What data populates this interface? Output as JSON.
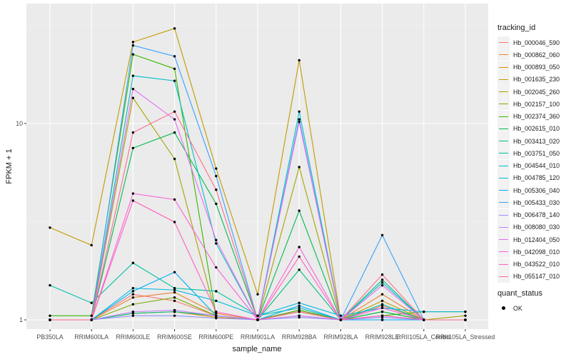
{
  "chart_data": {
    "type": "line",
    "xlabel": "sample_name",
    "ylabel": "FPKM + 1",
    "y_scale": "log10",
    "y_ticks": [
      1,
      10
    ],
    "y_tick_labels": [
      "1",
      "10"
    ],
    "grid": true,
    "legend_placement": "right",
    "categories": [
      "PB350LA",
      "RRIM600LA",
      "RRIM600LE",
      "RRIM600SE",
      "RRIM600PE",
      "RRIM901LA",
      "RRIM928BA",
      "RRIM928LA",
      "RRIM928LE",
      "RRII105LA_Control",
      "RRII105LA_Stressed"
    ],
    "series": [
      {
        "name": "Hb_000046_590",
        "color": "#F8766D",
        "values": [
          1.0,
          1.0,
          1.35,
          1.25,
          1.05,
          1.0,
          1.12,
          1.0,
          1.18,
          1.0,
          1.0
        ]
      },
      {
        "name": "Hb_000862_060",
        "color": "#EA8331",
        "values": [
          1.0,
          1.0,
          1.3,
          1.38,
          1.08,
          1.0,
          1.1,
          1.0,
          1.35,
          1.0,
          1.0
        ]
      },
      {
        "name": "Hb_000893_050",
        "color": "#D89000",
        "values": [
          1.0,
          1.0,
          1.08,
          1.1,
          1.03,
          1.0,
          1.05,
          1.0,
          1.05,
          1.0,
          1.0
        ]
      },
      {
        "name": "Hb_001635_230",
        "color": "#C09B00",
        "values": [
          2.95,
          2.4,
          26.0,
          30.5,
          5.9,
          1.35,
          21.0,
          1.0,
          1.25,
          1.0,
          1.0
        ]
      },
      {
        "name": "Hb_002045_260",
        "color": "#A3A500",
        "values": [
          1.0,
          1.0,
          13.5,
          6.6,
          1.05,
          1.0,
          6.0,
          1.0,
          1.0,
          1.0,
          1.05
        ]
      },
      {
        "name": "Hb_002157_100",
        "color": "#7CAE00",
        "values": [
          1.0,
          1.0,
          1.2,
          1.3,
          1.05,
          1.0,
          1.1,
          1.0,
          1.1,
          1.0,
          1.0
        ]
      },
      {
        "name": "Hb_002374_360",
        "color": "#39B600",
        "values": [
          1.05,
          1.05,
          22.5,
          19.0,
          1.05,
          1.0,
          1.12,
          1.0,
          1.05,
          1.1,
          1.1
        ]
      },
      {
        "name": "Hb_002615_010",
        "color": "#00BB4E",
        "values": [
          1.0,
          1.0,
          7.5,
          9.0,
          3.9,
          1.0,
          3.6,
          1.0,
          1.1,
          1.0,
          1.0
        ]
      },
      {
        "name": "Hb_003413_020",
        "color": "#00BF7D",
        "values": [
          1.0,
          1.0,
          1.08,
          1.1,
          1.05,
          1.0,
          1.8,
          1.0,
          1.6,
          1.0,
          1.0
        ]
      },
      {
        "name": "Hb_003751_050",
        "color": "#00C1A3",
        "values": [
          1.5,
          1.22,
          1.95,
          1.45,
          1.4,
          1.05,
          1.15,
          1.0,
          1.2,
          1.0,
          1.0
        ]
      },
      {
        "name": "Hb_004544_010",
        "color": "#00BFC4",
        "values": [
          1.0,
          1.0,
          17.5,
          16.5,
          2.45,
          1.0,
          11.5,
          1.0,
          1.55,
          1.0,
          1.0
        ]
      },
      {
        "name": "Hb_004785_120",
        "color": "#00BAE0",
        "values": [
          1.0,
          1.0,
          1.45,
          1.42,
          1.25,
          1.05,
          1.22,
          1.05,
          1.15,
          1.1,
          1.1
        ]
      },
      {
        "name": "Hb_005306_040",
        "color": "#00B0F6",
        "values": [
          1.0,
          1.0,
          1.4,
          1.75,
          1.05,
          1.0,
          1.18,
          1.0,
          1.0,
          1.0,
          1.0
        ]
      },
      {
        "name": "Hb_005433_030",
        "color": "#35A2FF",
        "values": [
          1.0,
          1.0,
          25.0,
          22.0,
          5.4,
          1.0,
          10.5,
          1.0,
          2.7,
          1.0,
          1.0
        ]
      },
      {
        "name": "Hb_006478_140",
        "color": "#9590FF",
        "values": [
          1.0,
          1.0,
          1.05,
          1.05,
          1.02,
          1.0,
          1.03,
          1.0,
          1.03,
          1.0,
          1.0
        ]
      },
      {
        "name": "Hb_008080_030",
        "color": "#C77CFF",
        "values": [
          1.0,
          1.0,
          1.1,
          1.12,
          1.05,
          1.0,
          1.05,
          1.0,
          1.05,
          1.0,
          1.0
        ]
      },
      {
        "name": "Hb_012404_050",
        "color": "#E76BF3",
        "values": [
          1.0,
          1.0,
          15.0,
          10.5,
          2.55,
          1.0,
          10.2,
          1.0,
          1.5,
          1.0,
          1.0
        ]
      },
      {
        "name": "Hb_042098_010",
        "color": "#FA62DB",
        "values": [
          1.0,
          1.0,
          4.4,
          4.1,
          1.85,
          1.0,
          2.35,
          1.0,
          1.15,
          1.0,
          1.0
        ]
      },
      {
        "name": "Hb_043522_010",
        "color": "#FF62BC",
        "values": [
          1.0,
          1.0,
          4.05,
          3.15,
          1.1,
          1.0,
          2.1,
          1.0,
          1.05,
          1.0,
          1.0
        ]
      },
      {
        "name": "Hb_055147_010",
        "color": "#FF6C91",
        "values": [
          1.0,
          1.0,
          9.0,
          11.5,
          4.6,
          1.0,
          1.1,
          1.0,
          1.7,
          1.0,
          1.0
        ]
      }
    ]
  },
  "legend": {
    "title": "tracking_id",
    "quant_title": "quant_status",
    "quant_items": [
      "OK"
    ]
  }
}
